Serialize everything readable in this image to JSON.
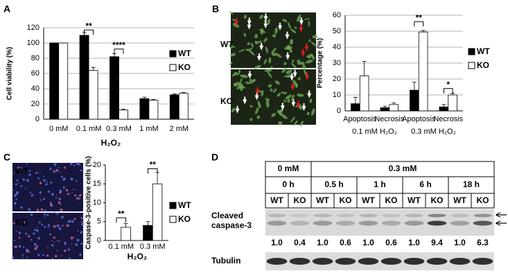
{
  "panel_labels": [
    "A",
    "B",
    "C",
    "D"
  ],
  "chart_data": [
    {
      "type": "bar",
      "y_label": "Cell viability (%)",
      "x_label": "H₂O₂",
      "categories": [
        "0 mM",
        "0.1 mM",
        "0.3 mM",
        "1 mM",
        "2 mM"
      ],
      "series": [
        {
          "name": "WT",
          "color": "#000000",
          "values": [
            100,
            110,
            82,
            27,
            32
          ],
          "errors": [
            0,
            4,
            4,
            2,
            1
          ]
        },
        {
          "name": "KO",
          "color": "#ffffff",
          "values": [
            100,
            64,
            12,
            25,
            34
          ],
          "errors": [
            0,
            4,
            1,
            1,
            1
          ]
        }
      ],
      "ylim": [
        0,
        120
      ],
      "yticks": [
        0,
        20,
        40,
        60,
        80,
        100,
        120
      ],
      "grid": true,
      "annotations": [
        "**",
        "****"
      ]
    },
    {
      "type": "bar",
      "y_label": "Percentage (%)",
      "image_labels": [
        "WT",
        "KO"
      ],
      "categories": [
        "Apoptosis",
        "Necrosis",
        "Apoptosis",
        "Necrosis"
      ],
      "group_labels": [
        "0.1 mM H₂O₂",
        "0.3 mM H₂O₂"
      ],
      "series": [
        {
          "name": "WT",
          "color": "#000000",
          "values": [
            4.5,
            2,
            13,
            2.5
          ],
          "errors": [
            4,
            1,
            5,
            1.5
          ]
        },
        {
          "name": "KO",
          "color": "#ffffff",
          "values": [
            22,
            4,
            49.5,
            10
          ],
          "errors": [
            9,
            1,
            1,
            1
          ]
        }
      ],
      "ylim": [
        0,
        60
      ],
      "yticks": [
        0,
        10,
        20,
        30,
        40,
        50,
        60
      ],
      "grid": true,
      "annotations": [
        "**",
        "*"
      ]
    },
    {
      "type": "bar",
      "y_label": "Caspase-3-positive cells (%)",
      "x_label": "H₂O₂",
      "image_labels": [
        "WT",
        "KO"
      ],
      "categories": [
        "0.1 mM",
        "0.3 mM"
      ],
      "series": [
        {
          "name": "WT",
          "color": "#000000",
          "values": [
            0,
            4
          ],
          "errors": [
            0,
            1
          ]
        },
        {
          "name": "KO",
          "color": "#ffffff",
          "values": [
            3.5,
            15
          ],
          "errors": [
            1,
            3
          ]
        }
      ],
      "ylim": [
        0,
        20
      ],
      "yticks": [
        0,
        5,
        10,
        15,
        20
      ],
      "grid": false,
      "annotations": [
        "**",
        "**"
      ]
    }
  ],
  "blot": {
    "doses": [
      "0 mM",
      "0.3 mM"
    ],
    "times": [
      "0 h",
      "0.5 h",
      "1 h",
      "6 h",
      "18 h"
    ],
    "genotypes": [
      "WT",
      "KO",
      "WT",
      "KO",
      "WT",
      "KO",
      "WT",
      "KO",
      "WT",
      "KO"
    ],
    "target_label": [
      "Cleaved",
      "caspase-3"
    ],
    "ratios": [
      "1.0",
      "0.4",
      "1.0",
      "0.6",
      "1.0",
      "0.6",
      "1.0",
      "9.4",
      "1.0",
      "6.3"
    ],
    "loading_label": "Tubulin"
  }
}
